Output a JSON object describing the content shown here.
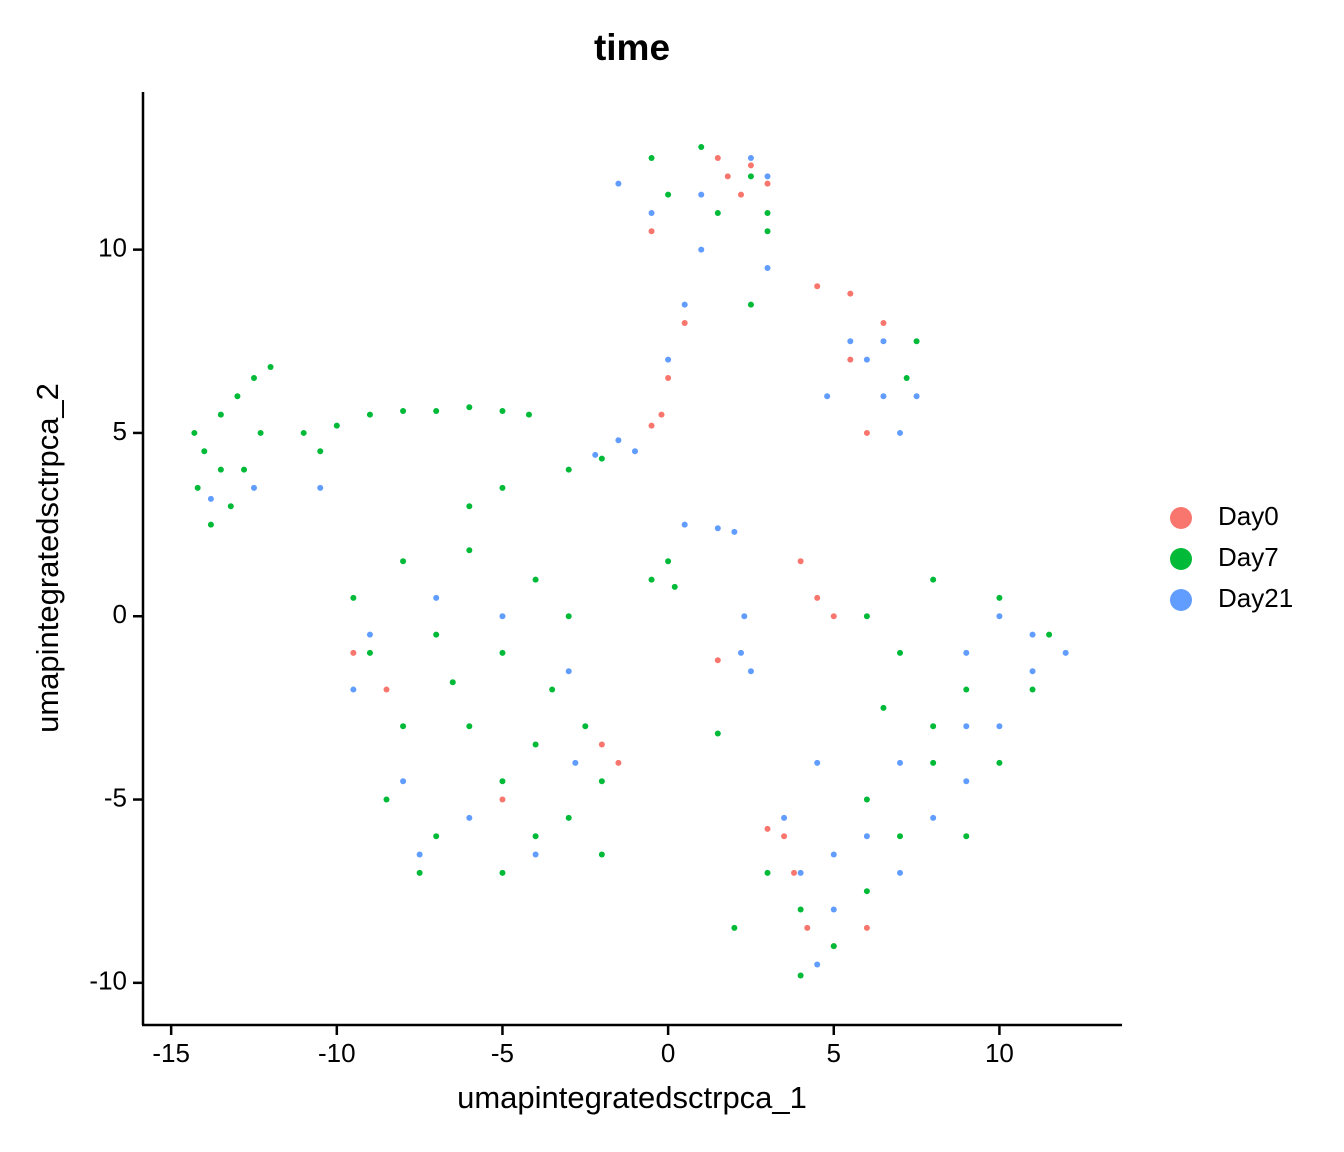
{
  "chart_data": {
    "type": "scatter",
    "title": "time",
    "x_label": "umapintegratedsctrpca_1",
    "y_label": "umapintegratedsctrpca_2",
    "xlim": [
      -15.85,
      13.7
    ],
    "ylim": [
      -11.15,
      14.3
    ],
    "xticks": [
      -15,
      -10,
      -5,
      0,
      5,
      10
    ],
    "yticks": [
      -10,
      -5,
      0,
      5,
      10
    ],
    "grid": false,
    "legend": "right",
    "series": [
      {
        "name": "Day0",
        "color": "#F8766D",
        "x": [
          1.8,
          2.2,
          2.5,
          3,
          1.5,
          -0.5,
          0.5,
          0,
          -0.5,
          -0.2,
          4.5,
          5.5,
          6.5,
          6,
          5.5,
          -9.5,
          -8.5,
          -2,
          -1.5,
          -5,
          4,
          4.5,
          5,
          3.5,
          3.8,
          5,
          4.2,
          6,
          3,
          1.5
        ],
        "values": [
          12,
          11.5,
          12.3,
          11.8,
          12.5,
          10.5,
          8,
          6.5,
          5.2,
          5.5,
          9,
          8.8,
          8,
          5,
          7,
          -1,
          -2,
          -3.5,
          -4,
          -5,
          1.5,
          0.5,
          0,
          -6,
          -7,
          -9,
          -8.5,
          -8.5,
          -5.8,
          -1.2
        ]
      },
      {
        "name": "Day7",
        "color": "#00BA38",
        "x": [
          -14,
          -13.5,
          -13,
          -12.5,
          -14.2,
          -13.8,
          -13.2,
          -12.8,
          -12.3,
          -13.5,
          -12,
          -14.3,
          -11,
          -10,
          -9,
          -8,
          -7,
          -6,
          -5,
          -4.2,
          -10.5,
          -5,
          -3,
          -2,
          -6,
          -9.5,
          -8,
          -6,
          -4,
          -3,
          -9,
          -7,
          -5,
          -3.5,
          -8,
          -6,
          -4,
          -2.5,
          -8.5,
          -7,
          -5,
          -4,
          -2,
          -2,
          -6.5,
          -5,
          -3,
          -7.5,
          0,
          -0.5,
          0.2,
          -0.5,
          1,
          2.5,
          3,
          0,
          1.5,
          2.5,
          3,
          7.5,
          7.2,
          6,
          8,
          10,
          11.5,
          7,
          9,
          11,
          8,
          10,
          6,
          7,
          9,
          4,
          5,
          4,
          6,
          3,
          8,
          6.5,
          1.5,
          2
        ],
        "values": [
          4.5,
          5.5,
          6,
          6.5,
          3.5,
          2.5,
          3,
          4,
          5,
          4,
          6.8,
          5,
          5,
          5.2,
          5.5,
          5.6,
          5.6,
          5.7,
          5.6,
          5.5,
          4.5,
          3.5,
          4,
          4.3,
          3,
          0.5,
          1.5,
          1.8,
          1,
          0,
          -1,
          -0.5,
          -1,
          -2,
          -3,
          -3,
          -3.5,
          -3,
          -5,
          -6,
          -7,
          -6,
          -6.5,
          -4.5,
          -1.8,
          -4.5,
          -5.5,
          -7,
          1.5,
          1,
          0.8,
          12.5,
          12.8,
          12,
          11,
          11.5,
          11,
          8.5,
          10.5,
          7.5,
          6.5,
          0,
          1,
          0.5,
          -0.5,
          -1,
          -2,
          -2,
          -4,
          -4,
          -5,
          -6,
          -6,
          -8,
          -9,
          -9.8,
          -7.5,
          -7,
          -3,
          -2.5,
          -3.2,
          -8.5
        ]
      },
      {
        "name": "Day21",
        "color": "#619CFF",
        "x": [
          -13.8,
          -12.5,
          -10.5,
          -9,
          -7,
          -5,
          -8,
          -7.5,
          -6,
          -4,
          -2.8,
          -3,
          -9.5,
          -1.5,
          -0.5,
          1,
          2.5,
          3,
          1,
          0.5,
          0,
          -1,
          -1.5,
          -2.2,
          3,
          5.5,
          6,
          6.5,
          7,
          7.5,
          6.5,
          4.8,
          0.5,
          1.5,
          2,
          2.3,
          2.2,
          2.5,
          4.5,
          10,
          11,
          12,
          9,
          11,
          9,
          7,
          10,
          6,
          5,
          4,
          5,
          7,
          8,
          9,
          3.5,
          4.5
        ],
        "values": [
          3.2,
          3.5,
          3.5,
          -0.5,
          0.5,
          0,
          -4.5,
          -6.5,
          -5.5,
          -6.5,
          -4,
          -1.5,
          -2,
          11.8,
          11,
          11.5,
          12.5,
          12,
          10,
          8.5,
          7,
          4.5,
          4.8,
          4.4,
          9.5,
          7.5,
          7,
          6,
          5,
          6,
          7.5,
          6,
          2.5,
          2.4,
          2.3,
          0,
          -1,
          -1.5,
          -4,
          0,
          -0.5,
          -1,
          -1,
          -1.5,
          -3,
          -4,
          -3,
          -6,
          -6.5,
          -7,
          -8,
          -7,
          -5.5,
          -4.5,
          -5.5,
          -9.5
        ]
      }
    ]
  }
}
